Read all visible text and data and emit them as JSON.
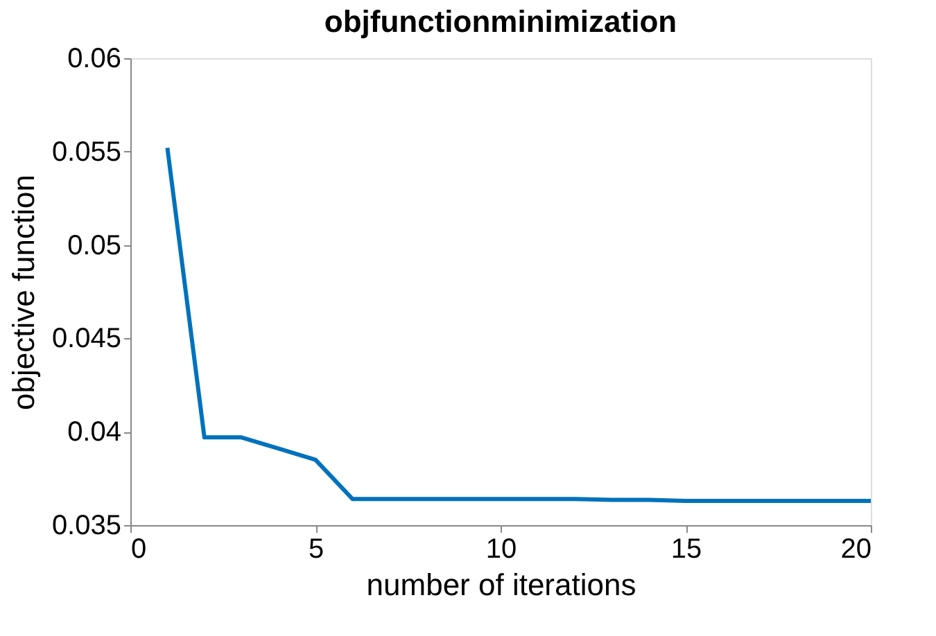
{
  "chart_data": {
    "type": "line",
    "title": "objfunctionminimization",
    "xlabel": "number of iterations",
    "ylabel": "objective function",
    "x": [
      1,
      2,
      3,
      4,
      5,
      6,
      7,
      8,
      9,
      10,
      11,
      12,
      13,
      14,
      15,
      16,
      17,
      18,
      19,
      20
    ],
    "series": [
      {
        "color": "#0072bd",
        "values": [
          0.0552,
          0.0397,
          0.0397,
          0.0391,
          0.0385,
          0.0364,
          0.0364,
          0.0364,
          0.0364,
          0.0364,
          0.0364,
          0.0364,
          0.03635,
          0.03635,
          0.0363,
          0.0363,
          0.0363,
          0.0363,
          0.0363,
          0.0363
        ]
      }
    ],
    "xlim": [
      0,
      20
    ],
    "xticks": [
      0,
      5,
      10,
      15,
      20
    ],
    "ylim": [
      0.035,
      0.06
    ],
    "yticks": [
      0.035,
      0.04,
      0.045,
      0.05,
      0.055,
      0.06
    ],
    "grid": false,
    "marker": "none",
    "line_style": "solid"
  }
}
